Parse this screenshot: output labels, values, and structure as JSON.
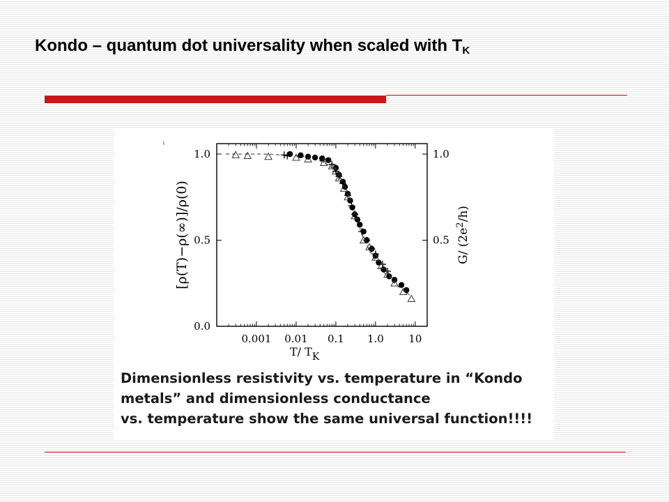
{
  "slide": {
    "title_main": "Kondo – quantum dot universality when scaled with T",
    "title_sub": "K"
  },
  "colors": {
    "accent_red": "#c8161d"
  },
  "caption": {
    "line1": "Dimensionless resistivity vs. temperature in “Kondo",
    "line2": "metals” and dimensionless conductance",
    "line3": "vs. temperature show the same universal function!!!!"
  },
  "chart_data": {
    "type": "scatter",
    "x_scale": "log",
    "xlim": [
      0.0001,
      20
    ],
    "ylim": [
      0,
      1.05
    ],
    "x_ticks": [
      0.001,
      0.01,
      0.1,
      1.0,
      10
    ],
    "x_tick_labels": [
      "0.001",
      "0.01",
      "0.1",
      "1.0",
      "10"
    ],
    "y_ticks": [
      0.0,
      0.5,
      1.0
    ],
    "y_tick_labels": [
      "0.0",
      "0.5",
      "1.0"
    ],
    "y2_ticks": [
      0.5,
      1.0
    ],
    "y2_tick_labels": [
      "0.5",
      "1.0"
    ],
    "xlabel_main": "T/ T",
    "xlabel_sub": "K",
    "ylabel": "[ρ(T)−ρ(∞)]/ρ(0)",
    "y2label_pre": "G/ (2e",
    "y2label_sup": "2",
    "y2label_post": "/h)",
    "grid": false,
    "legend": "none",
    "dashed_curve": {
      "x": [
        0.00017,
        0.0003,
        0.0006,
        0.001,
        0.002,
        0.004,
        0.008,
        0.015,
        0.025,
        0.04,
        0.06,
        0.08,
        0.1,
        0.13,
        0.16,
        0.2,
        0.25,
        0.3,
        0.4,
        0.5,
        0.7,
        1.0,
        1.4,
        2.0,
        3.0,
        4.0,
        6.0,
        8.0
      ],
      "y": [
        1.0,
        1.0,
        1.0,
        1.0,
        1.0,
        0.995,
        0.99,
        0.985,
        0.975,
        0.96,
        0.94,
        0.92,
        0.895,
        0.855,
        0.815,
        0.765,
        0.705,
        0.65,
        0.57,
        0.51,
        0.44,
        0.38,
        0.33,
        0.29,
        0.25,
        0.225,
        0.195,
        0.175
      ]
    },
    "series": [
      {
        "marker": "filled-circle",
        "x": [
          0.007,
          0.013,
          0.02,
          0.03,
          0.045,
          0.065,
          0.1,
          0.12,
          0.15,
          0.17,
          0.2,
          0.23,
          0.26,
          0.3,
          0.35,
          0.4,
          0.5,
          0.6,
          0.8,
          1.0,
          1.2,
          1.6,
          2.2,
          3.0,
          4.5,
          6.0
        ],
        "y": [
          1.0,
          0.993,
          0.985,
          0.98,
          0.975,
          0.965,
          0.92,
          0.88,
          0.84,
          0.81,
          0.77,
          0.73,
          0.69,
          0.65,
          0.62,
          0.59,
          0.55,
          0.5,
          0.45,
          0.41,
          0.37,
          0.33,
          0.29,
          0.27,
          0.24,
          0.21
        ]
      },
      {
        "marker": "plus",
        "x": [
          0.005,
          0.006,
          0.05,
          0.08,
          0.1,
          0.12,
          0.15,
          0.2,
          0.25,
          0.3,
          0.45,
          0.6,
          0.8,
          1.0,
          1.5,
          2.0
        ],
        "y": [
          0.995,
          0.99,
          0.97,
          0.94,
          0.9,
          0.87,
          0.83,
          0.76,
          0.7,
          0.65,
          0.55,
          0.5,
          0.45,
          0.42,
          0.36,
          0.32
        ]
      },
      {
        "marker": "open-triangle",
        "x": [
          0.0003,
          0.0006,
          0.002,
          0.01,
          0.02,
          0.05,
          0.08,
          0.1,
          0.12,
          0.16,
          0.2,
          0.3,
          0.5,
          0.7,
          1.0,
          1.4,
          2.0,
          3.0,
          5.0,
          8.0
        ],
        "y": [
          0.995,
          0.99,
          0.985,
          0.98,
          0.97,
          0.95,
          0.93,
          0.9,
          0.86,
          0.8,
          0.75,
          0.64,
          0.5,
          0.46,
          0.4,
          0.35,
          0.3,
          0.25,
          0.2,
          0.16
        ]
      }
    ]
  }
}
